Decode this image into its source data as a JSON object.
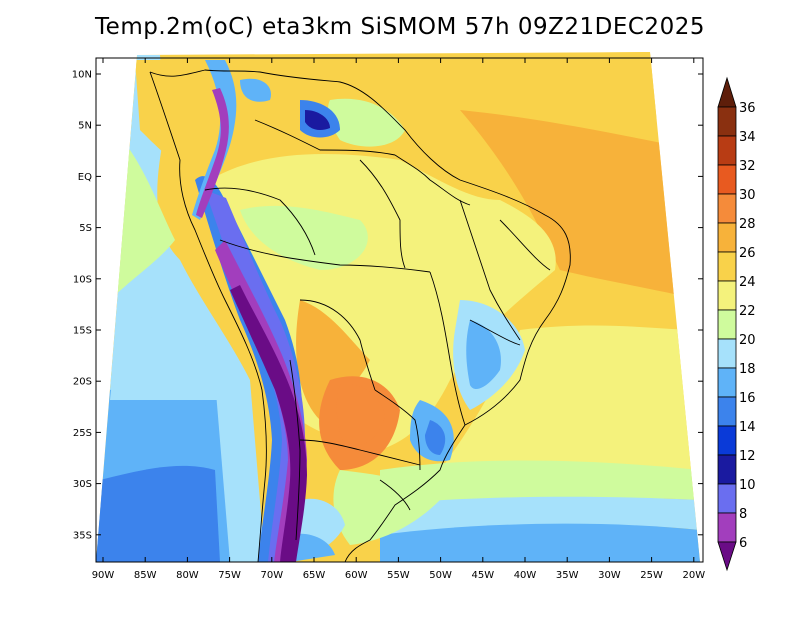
{
  "title": "Temp.2m(oC) eta3km SiSMOM 57h 09Z21DEC2025",
  "axes": {
    "lat_labels": [
      "10N",
      "5N",
      "EQ",
      "5S",
      "10S",
      "15S",
      "20S",
      "25S",
      "30S",
      "35S"
    ],
    "lon_labels": [
      "90W",
      "85W",
      "80W",
      "75W",
      "70W",
      "65W",
      "60W",
      "55W",
      "50W",
      "45W",
      "40W",
      "35W",
      "30W",
      "25W",
      "20W"
    ]
  },
  "colorbar": {
    "labels": [
      "6",
      "8",
      "10",
      "12",
      "14",
      "16",
      "18",
      "20",
      "22",
      "24",
      "26",
      "28",
      "30",
      "32",
      "34",
      "36"
    ],
    "colors": [
      "#6a0c86",
      "#a23ebd",
      "#6a6ef0",
      "#1a1aa0",
      "#0a3ad8",
      "#3c83ec",
      "#5fb3f8",
      "#a6e1fb",
      "#cffb9d",
      "#f4f27c",
      "#f9d24a",
      "#f7b23a",
      "#f58b3a",
      "#e85a20",
      "#b83c14",
      "#8a3010",
      "#5e1e0a"
    ]
  },
  "legend_colors": {
    "ocean_south_far": "#3c83ec",
    "ocean_south": "#5fb3f8",
    "ocean_mid": "#a6e1fb",
    "ocean_sub": "#cffb9d",
    "tropical": "#f4f27c",
    "warm": "#f9d24a",
    "hot": "#f7b23a",
    "hotter": "#f58b3a"
  }
}
